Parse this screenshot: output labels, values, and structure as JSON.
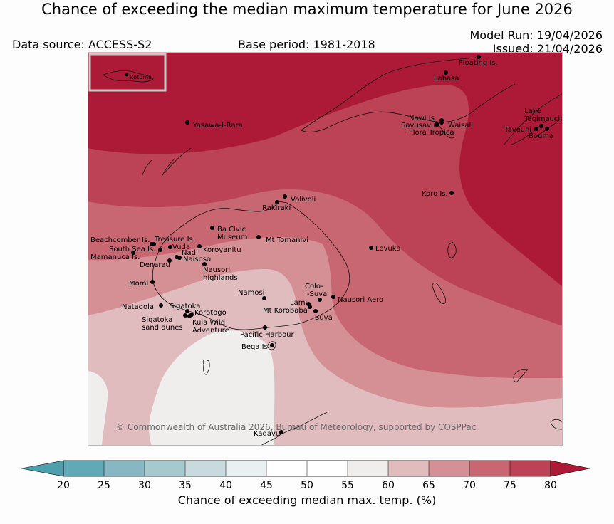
{
  "title": "Chance of exceeding the median maximum temperature for June 2026",
  "data_source": "Data source: ACCESS-S2",
  "base_period": "Base period: 1981-2018",
  "model_run": "Model Run: 19/04/2026",
  "issued": "Issued: 21/04/2026",
  "copyright": "© Commonwealth of Australia 2026, Bureau of Meteorology, supported by COSPPac",
  "inset_label": "Rotuma",
  "colorbar": {
    "label": "Chance of exceeding median max. temp. (%)",
    "ticks": [
      "20",
      "25",
      "30",
      "35",
      "40",
      "45",
      "50",
      "55",
      "60",
      "65",
      "70",
      "75",
      "80"
    ],
    "colors": [
      "#62a9b8",
      "#86b7c2",
      "#a6c9ce",
      "#c8dade",
      "#e9f0f2",
      "#ffffff",
      "#ffffff",
      "#efeeec",
      "#e0bcbf",
      "#d59096",
      "#c86672",
      "#bb4355"
    ],
    "under_color": "#4d9fae",
    "over_color": "#ad1a38"
  },
  "places": [
    {
      "name": "Floating Is.",
      "lines": [
        "Floating Is."
      ]
    },
    {
      "name": "Labasa",
      "lines": [
        "Labasa"
      ]
    },
    {
      "name": "Yasawa-I-Rara",
      "lines": [
        "Yasawa-I-Rara"
      ]
    },
    {
      "name": "Nawi Is.",
      "lines": [
        "Nawi Is."
      ]
    },
    {
      "name": "Savusavu",
      "lines": [
        "Savusavu"
      ]
    },
    {
      "name": "Waisali",
      "lines": [
        "Waisali"
      ]
    },
    {
      "name": "Flora Tropica",
      "lines": [
        "Flora Tropica"
      ]
    },
    {
      "name": "Lake Tagimaucia",
      "lines": [
        "Lake",
        "Tagimaucia"
      ]
    },
    {
      "name": "Taveuni",
      "lines": [
        "Taveuni"
      ]
    },
    {
      "name": "Bouma",
      "lines": [
        "Bouma"
      ]
    },
    {
      "name": "Koro Is.",
      "lines": [
        "Koro Is."
      ]
    },
    {
      "name": "Volivoli",
      "lines": [
        "Volivoli"
      ]
    },
    {
      "name": "Rakiraki",
      "lines": [
        "Rakiraki"
      ]
    },
    {
      "name": "Ba Civic Museum",
      "lines": [
        "Ba Civic",
        "Museum"
      ]
    },
    {
      "name": "Mt Tomanivi",
      "lines": [
        "Mt Tomanivi"
      ]
    },
    {
      "name": "Levuka",
      "lines": [
        "Levuka"
      ]
    },
    {
      "name": "Beachcomber Is.",
      "lines": [
        "Beachcomber Is."
      ]
    },
    {
      "name": "Treasure Is.",
      "lines": [
        "Treasure Is."
      ]
    },
    {
      "name": "South Sea Is.",
      "lines": [
        "South Sea Is."
      ]
    },
    {
      "name": "Vuda",
      "lines": [
        "Vuda"
      ]
    },
    {
      "name": "Koroyanitu",
      "lines": [
        "Koroyanitu"
      ]
    },
    {
      "name": "Mamanuca Is.",
      "lines": [
        "Mamanuca Is."
      ]
    },
    {
      "name": "Nadi",
      "lines": [
        "Nadi"
      ]
    },
    {
      "name": "Naisoso",
      "lines": [
        "Naisoso"
      ]
    },
    {
      "name": "Denarau",
      "lines": [
        "Denarau"
      ]
    },
    {
      "name": "Nausori highlands",
      "lines": [
        "Nausori",
        "highlands"
      ]
    },
    {
      "name": "Momi",
      "lines": [
        "Momi"
      ]
    },
    {
      "name": "Colo-I-Suva",
      "lines": [
        "Colo-",
        "I-Suva"
      ]
    },
    {
      "name": "Namosi",
      "lines": [
        "Namosi"
      ]
    },
    {
      "name": "Lami",
      "lines": [
        "Lami"
      ]
    },
    {
      "name": "Nausori Aero",
      "lines": [
        "Nausori Aero"
      ]
    },
    {
      "name": "Mt Korobaba",
      "lines": [
        "Mt Korobaba"
      ]
    },
    {
      "name": "Suva",
      "lines": [
        "Suva"
      ]
    },
    {
      "name": "Natadola",
      "lines": [
        "Natadola"
      ]
    },
    {
      "name": "Sigatoka",
      "lines": [
        "Sigatoka"
      ]
    },
    {
      "name": "Korotogo",
      "lines": [
        "Korotogo"
      ]
    },
    {
      "name": "Sigatoka sand dunes",
      "lines": [
        "Sigatoka",
        "sand dunes"
      ]
    },
    {
      "name": "Kula Wild Adventure",
      "lines": [
        "Kula Wild",
        "Adventure"
      ]
    },
    {
      "name": "Pacific Harbour",
      "lines": [
        "Pacific Harbour"
      ]
    },
    {
      "name": "Beqa Is.",
      "lines": [
        "Beqa Is."
      ]
    },
    {
      "name": "Kadavu",
      "lines": [
        "Kadavu"
      ]
    }
  ]
}
